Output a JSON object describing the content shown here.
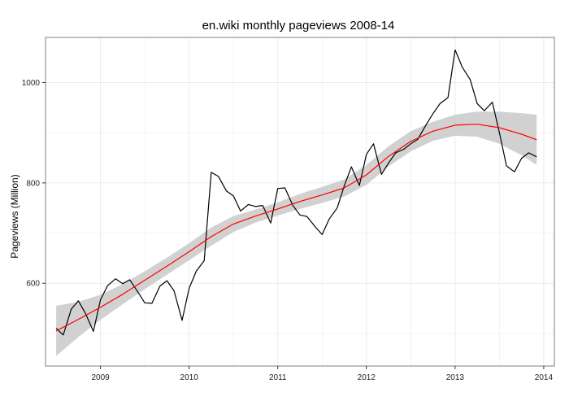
{
  "chart_data": {
    "type": "line",
    "title": "en.wiki monthly pageviews 2008-14",
    "xlabel": "",
    "ylabel": "Pageviews (Million)",
    "xlim": [
      2008.38,
      2014.12
    ],
    "ylim": [
      435,
      1090
    ],
    "x_ticks": [
      2009,
      2010,
      2011,
      2012,
      2013,
      2014
    ],
    "x_tick_labels": [
      "2009",
      "2010",
      "2011",
      "2012",
      "2013",
      "2014"
    ],
    "y_ticks": [
      600,
      800,
      1000
    ],
    "y_tick_labels": [
      "600",
      "800",
      "1000"
    ],
    "grid": true,
    "colors": {
      "series": "#000000",
      "smooth": "#ff0000",
      "band": "#cccccc",
      "grid": "#ebebeb",
      "panel_border": "#7f7f7f"
    },
    "series": [
      {
        "x": [
          2008.5,
          2008.58,
          2008.67,
          2008.75,
          2008.83,
          2008.92,
          2009.0,
          2009.08,
          2009.17,
          2009.25,
          2009.33,
          2009.42,
          2009.5,
          2009.58,
          2009.67,
          2009.75,
          2009.83,
          2009.92,
          2010.0,
          2010.08,
          2010.17,
          2010.25,
          2010.33,
          2010.42,
          2010.5,
          2010.58,
          2010.67,
          2010.75,
          2010.83,
          2010.92,
          2011.0,
          2011.08,
          2011.17,
          2011.25,
          2011.33,
          2011.42,
          2011.5,
          2011.58,
          2011.67,
          2011.75,
          2011.83,
          2011.92,
          2012.0,
          2012.08,
          2012.17,
          2012.25,
          2012.33,
          2012.42,
          2012.5,
          2012.58,
          2012.67,
          2012.75,
          2012.83,
          2012.92,
          2013.0,
          2013.08,
          2013.17,
          2013.25,
          2013.33,
          2013.42,
          2013.5,
          2013.58,
          2013.67,
          2013.75,
          2013.83,
          2013.92
        ],
        "values": [
          510,
          497,
          548,
          565,
          540,
          504,
          567,
          595,
          609,
          599,
          607,
          583,
          561,
          560,
          594,
          605,
          585,
          526,
          590,
          624,
          645,
          821,
          813,
          784,
          774,
          744,
          757,
          753,
          755,
          720,
          789,
          790,
          755,
          736,
          733,
          713,
          697,
          728,
          750,
          794,
          832,
          795,
          857,
          878,
          817,
          840,
          860,
          867,
          878,
          887,
          915,
          938,
          958,
          970,
          1065,
          1031,
          1006,
          958,
          944,
          961,
          900,
          834,
          822,
          849,
          860,
          852
        ]
      }
    ],
    "smooth": {
      "x": [
        2008.5,
        2008.75,
        2009.0,
        2009.25,
        2009.5,
        2009.75,
        2010.0,
        2010.25,
        2010.5,
        2010.75,
        2011.0,
        2011.25,
        2011.5,
        2011.75,
        2012.0,
        2012.25,
        2012.5,
        2012.75,
        2013.0,
        2013.25,
        2013.5,
        2013.75,
        2013.92
      ],
      "fit": [
        505,
        528,
        552,
        578,
        606,
        634,
        663,
        693,
        718,
        734,
        748,
        763,
        776,
        790,
        816,
        853,
        883,
        903,
        915,
        917,
        910,
        897,
        886
      ],
      "lower": [
        455,
        493,
        527,
        558,
        588,
        617,
        646,
        675,
        702,
        721,
        735,
        748,
        760,
        773,
        796,
        833,
        863,
        884,
        894,
        892,
        878,
        855,
        836
      ],
      "upper": [
        555,
        563,
        577,
        598,
        624,
        651,
        680,
        711,
        734,
        747,
        761,
        778,
        792,
        807,
        836,
        873,
        903,
        922,
        936,
        942,
        942,
        939,
        936
      ]
    }
  }
}
